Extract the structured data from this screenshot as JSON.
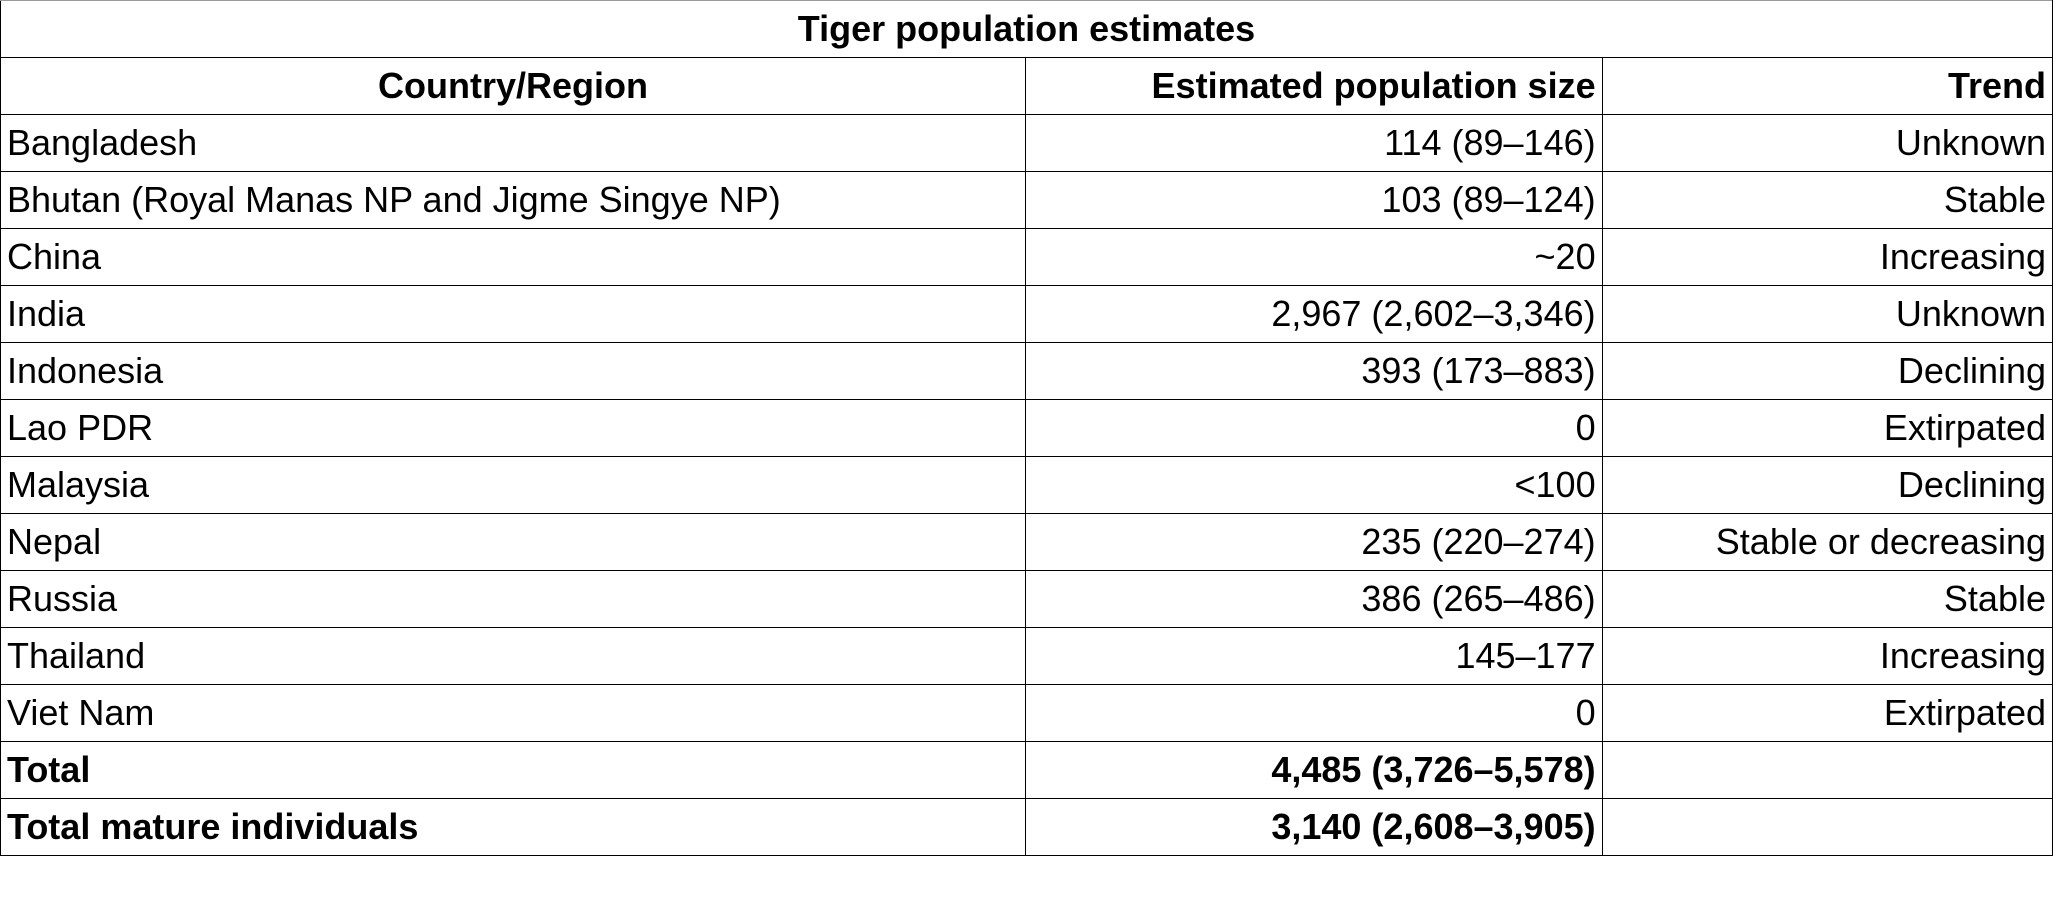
{
  "table": {
    "title": "Tiger population estimates",
    "headers": {
      "region": "Country/Region",
      "population": "Estimated population size",
      "trend": "Trend"
    },
    "rows": [
      {
        "region": "Bangladesh",
        "population": "114 (89–146)",
        "trend": "Unknown"
      },
      {
        "region": "Bhutan (Royal Manas NP and Jigme Singye NP)",
        "population": "103 (89–124)",
        "trend": "Stable"
      },
      {
        "region": "China",
        "population": "~20",
        "trend": "Increasing"
      },
      {
        "region": "India",
        "population": "2,967 (2,602–3,346)",
        "trend": "Unknown"
      },
      {
        "region": "Indonesia",
        "population": "393 (173–883)",
        "trend": "Declining"
      },
      {
        "region": "Lao PDR",
        "population": "0",
        "trend": "Extirpated"
      },
      {
        "region": "Malaysia",
        "population": "<100",
        "trend": "Declining"
      },
      {
        "region": "Nepal",
        "population": "235 (220–274)",
        "trend": "Stable or decreasing"
      },
      {
        "region": "Russia",
        "population": "386 (265–486)",
        "trend": "Stable"
      },
      {
        "region": "Thailand",
        "population": "145–177",
        "trend": "Increasing"
      },
      {
        "region": "Viet Nam",
        "population": "0",
        "trend": "Extirpated"
      }
    ],
    "totals": [
      {
        "region": "Total",
        "population": "4,485 (3,726–5,578)",
        "trend": ""
      },
      {
        "region": "Total mature individuals",
        "population": "3,140 (2,608–3,905)",
        "trend": ""
      }
    ]
  }
}
